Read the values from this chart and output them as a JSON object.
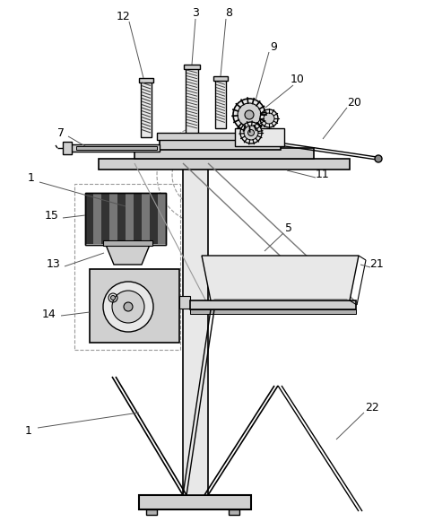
{
  "line_color": "#000000",
  "bg_color": "#ffffff",
  "gray1": "#e8e8e8",
  "gray2": "#d0d0d0",
  "gray3": "#b0b0b0",
  "gray4": "#888888",
  "dash_color": "#999999",
  "lw_main": 1.2,
  "lw_thin": 0.7,
  "lw_thick": 1.8,
  "label_fs": 9
}
